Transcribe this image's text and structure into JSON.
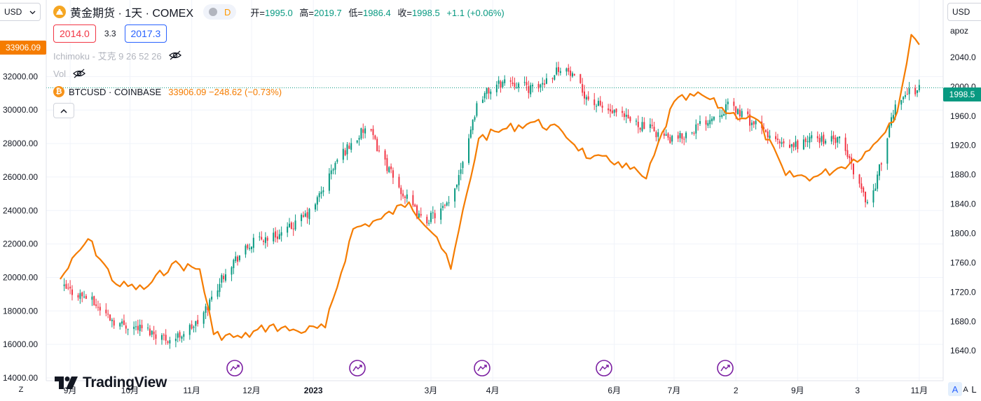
{
  "header": {
    "currency_left": "USD",
    "currency_right": "USD",
    "right_scale_mode": "apoz",
    "symbol_title": "黄金期货 · 1天 · COMEX",
    "interval_badge": "D",
    "ohlc": {
      "open_label": "开=",
      "open": "1995.0",
      "high_label": "高=",
      "high": "2019.7",
      "low_label": "低=",
      "low": "1986.4",
      "close_label": "收=",
      "close": "1998.5",
      "change": "+1.1 (+0.06%)"
    },
    "bid": "2014.0",
    "spread": "3.3",
    "ask": "2017.3",
    "indicator_ichimoku": "Ichimoku - 艾克 9 26 52 26",
    "indicator_vol": "Vol",
    "compare_symbol": "BTCUSD · COINBASE",
    "compare_values": "33906.09  −248.62 (−0.73%)",
    "btc_icon_glyph": "₿"
  },
  "labels": {
    "btc_last": "33906.09",
    "gold_last": "1998.5"
  },
  "logo": {
    "text": "TradingView"
  },
  "bottom": {
    "z_button": "Z",
    "a_button": "A",
    "a_toggle": "A",
    "l_toggle": "L"
  },
  "colors": {
    "up": "#089981",
    "down": "#f23645",
    "btc_line": "#f57c00",
    "grid": "#f0f3fa",
    "event_marker": "#7b1fa2",
    "last_price_line": "#089981"
  },
  "chart_data": {
    "type": "line",
    "description_series": [
      {
        "name": "黄金期货 · 1天 · COMEX",
        "style": "candlestick",
        "axis": "right",
        "ohlc_current": {
          "open": 1995.0,
          "high": 2019.7,
          "low": 1986.4,
          "close": 1998.5
        },
        "x": [
          "2022-08-27",
          "2022-09-10",
          "2022-09-24",
          "2022-10-08",
          "2022-10-22",
          "2022-11-05",
          "2022-11-19",
          "2022-12-03",
          "2022-12-17",
          "2022-12-31",
          "2023-01-14",
          "2023-01-28",
          "2023-02-11",
          "2023-02-25",
          "2023-03-11",
          "2023-03-25",
          "2023-04-08",
          "2023-04-22",
          "2023-05-06",
          "2023-05-20",
          "2023-06-03",
          "2023-06-17",
          "2023-07-01",
          "2023-07-15",
          "2023-07-29",
          "2023-08-12",
          "2023-08-26",
          "2023-09-09",
          "2023-09-23",
          "2023-10-07",
          "2023-10-21",
          "2023-11-01"
        ],
        "values": [
          1727,
          1712,
          1678,
          1670,
          1654,
          1680,
          1755,
          1790,
          1800,
          1830,
          1905,
          1945,
          1870,
          1815,
          1840,
          1985,
          2010,
          1995,
          2030,
          1980,
          1960,
          1945,
          1925,
          1950,
          1975,
          1945,
          1915,
          1930,
          1925,
          1835,
          1985,
          1998.5
        ]
      },
      {
        "name": "BTCUSD · COINBASE",
        "style": "line",
        "axis": "left",
        "x": [
          "2022-08-27",
          "2022-09-10",
          "2022-09-24",
          "2022-10-08",
          "2022-10-22",
          "2022-11-05",
          "2022-11-12",
          "2022-11-26",
          "2022-12-10",
          "2022-12-24",
          "2023-01-07",
          "2023-01-21",
          "2023-02-04",
          "2023-02-18",
          "2023-03-04",
          "2023-03-11",
          "2023-03-25",
          "2023-04-08",
          "2023-04-22",
          "2023-05-06",
          "2023-05-20",
          "2023-06-03",
          "2023-06-17",
          "2023-07-01",
          "2023-07-15",
          "2023-07-29",
          "2023-08-12",
          "2023-08-26",
          "2023-09-09",
          "2023-09-23",
          "2023-10-07",
          "2023-10-21",
          "2023-10-28",
          "2023-11-01"
        ],
        "values": [
          19900,
          22300,
          19600,
          19300,
          20800,
          20500,
          16600,
          16400,
          17100,
          16800,
          17000,
          22900,
          23500,
          24500,
          22400,
          20500,
          28300,
          28900,
          29300,
          28700,
          27100,
          26900,
          25900,
          30500,
          30900,
          29800,
          29400,
          26100,
          26000,
          26600,
          27600,
          29900,
          34500,
          33906.09
        ]
      }
    ],
    "categories": [
      "9月",
      "10月",
      "11月",
      "12月",
      "2023",
      "3月",
      "4月",
      "6月",
      "7月",
      "2",
      "9月",
      "3",
      "11月"
    ],
    "left_axis": {
      "ticks": [
        "14000.00",
        "16000.00",
        "18000.00",
        "20000.00",
        "22000.00",
        "24000.00",
        "26000.00",
        "28000.00",
        "30000.00",
        "32000.00"
      ],
      "ylim": [
        14000,
        34900
      ]
    },
    "right_axis": {
      "ticks": [
        "1640.0",
        "1680.0",
        "1720.0",
        "1760.0",
        "1800.0",
        "1840.0",
        "1880.0",
        "1920.0",
        "1960.0",
        "2000.0",
        "2040.0"
      ],
      "ylim": [
        1603,
        2080
      ]
    },
    "grid": true,
    "event_marker_count": 5
  }
}
